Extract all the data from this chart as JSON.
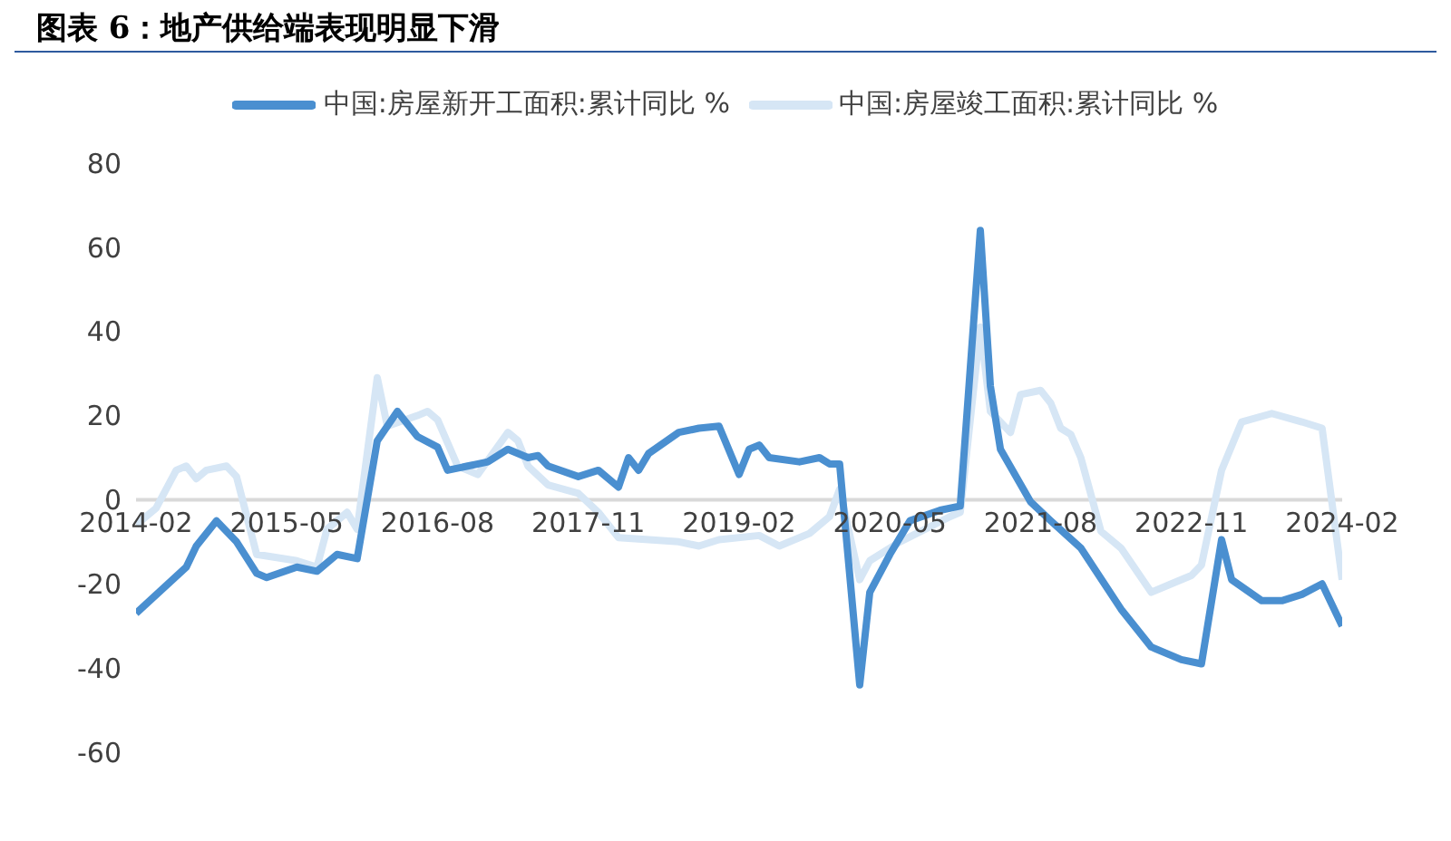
{
  "chart_data": {
    "type": "line",
    "title": "图表 6：地产供给端表现明显下滑",
    "legend": "top",
    "grid": false,
    "marker": "none",
    "line_style": "solid",
    "xlim": [
      "2014-02",
      "2024-02"
    ],
    "xticks": [
      "2014-02",
      "2015-05",
      "2016-08",
      "2017-11",
      "2019-02",
      "2020-05",
      "2021-08",
      "2022-11",
      "2024-02"
    ],
    "ylim": [
      -60,
      80
    ],
    "yticks": [
      -60,
      -40,
      -20,
      0,
      20,
      40,
      60,
      80
    ],
    "series": [
      {
        "name": "中国:房屋新开工面积:累计同比 %",
        "color": "#4a8fd0",
        "x": [
          "2014-02",
          "2014-07",
          "2014-08",
          "2014-10",
          "2014-12",
          "2015-02",
          "2015-03",
          "2015-06",
          "2015-08",
          "2015-10",
          "2015-12",
          "2016-02",
          "2016-04",
          "2016-06",
          "2016-08",
          "2016-09",
          "2016-11",
          "2017-01",
          "2017-03",
          "2017-05",
          "2017-06",
          "2017-07",
          "2017-10",
          "2017-12",
          "2018-02",
          "2018-03",
          "2018-04",
          "2018-05",
          "2018-08",
          "2018-10",
          "2018-12",
          "2019-02",
          "2019-03",
          "2019-04",
          "2019-05",
          "2019-08",
          "2019-10",
          "2019-11",
          "2019-12",
          "2020-02",
          "2020-03",
          "2020-05",
          "2020-07",
          "2020-10",
          "2020-12",
          "2021-02",
          "2021-03",
          "2021-04",
          "2021-07",
          "2021-09",
          "2021-12",
          "2022-04",
          "2022-07",
          "2022-10",
          "2022-12",
          "2023-02",
          "2023-03",
          "2023-06",
          "2023-08",
          "2023-10",
          "2023-12",
          "2024-02"
        ],
        "values": [
          -27,
          -16,
          -11,
          -5,
          -10,
          -17.5,
          -18.5,
          -16,
          -17,
          -13,
          -14,
          14,
          21,
          15,
          12.5,
          7,
          8,
          9,
          12,
          10,
          10.5,
          8,
          5.5,
          7,
          3,
          10,
          7,
          11,
          16,
          17,
          17.5,
          6,
          12,
          13,
          10,
          9,
          10,
          8.5,
          8.5,
          -44,
          -22,
          -13,
          -5,
          -2.5,
          -1.5,
          64,
          27,
          12,
          -0.5,
          -5,
          -11.5,
          -26,
          -35,
          -38,
          -39,
          -9.5,
          -19,
          -24,
          -24,
          -22.5,
          -20,
          -30
        ]
      },
      {
        "name": "中国:房屋竣工面积:累计同比 %",
        "color": "#d6e6f5",
        "x": [
          "2014-02",
          "2014-04",
          "2014-06",
          "2014-07",
          "2014-08",
          "2014-09",
          "2014-11",
          "2014-12",
          "2015-02",
          "2015-06",
          "2015-08",
          "2015-09",
          "2015-11",
          "2015-12",
          "2016-02",
          "2016-03",
          "2016-06",
          "2016-07",
          "2016-08",
          "2016-10",
          "2016-12",
          "2017-03",
          "2017-04",
          "2017-05",
          "2017-07",
          "2017-10",
          "2017-12",
          "2018-02",
          "2018-05",
          "2018-08",
          "2018-10",
          "2018-12",
          "2019-04",
          "2019-06",
          "2019-09",
          "2019-11",
          "2019-12",
          "2020-02",
          "2020-03",
          "2020-06",
          "2020-11",
          "2020-12",
          "2021-02",
          "2021-03",
          "2021-05",
          "2021-06",
          "2021-08",
          "2021-09",
          "2021-10",
          "2021-11",
          "2021-12",
          "2022-02",
          "2022-04",
          "2022-07",
          "2022-09",
          "2022-11",
          "2022-12",
          "2023-02",
          "2023-04",
          "2023-07",
          "2023-10",
          "2023-12",
          "2024-02"
        ],
        "values": [
          -6,
          -2,
          7,
          8,
          5,
          7,
          8,
          5.5,
          -13,
          -14.5,
          -16,
          -7,
          -3,
          -7,
          29,
          17.5,
          20,
          21,
          19,
          8,
          6,
          16,
          14,
          8,
          3.5,
          1.5,
          -3,
          -9,
          -9.5,
          -10,
          -11,
          -9.5,
          -8.5,
          -11,
          -8,
          -4,
          2.5,
          -19,
          -14.5,
          -10,
          -4,
          -3,
          41,
          21,
          16,
          25,
          26,
          23,
          17,
          15.5,
          10,
          -7.5,
          -11.5,
          -22,
          -20,
          -18,
          -15.5,
          7,
          18.5,
          20.5,
          18.5,
          17,
          -19
        ]
      }
    ]
  }
}
